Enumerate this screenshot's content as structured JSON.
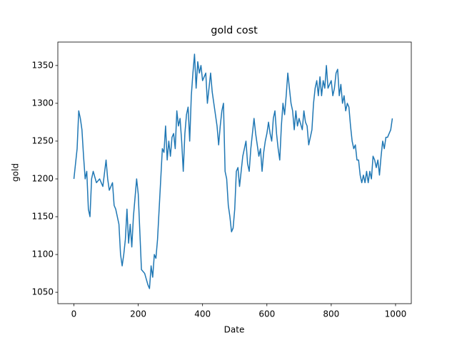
{
  "chart_data": {
    "type": "line",
    "title": "gold cost",
    "x_label": "Date",
    "y_label": "gold",
    "color": "#1f77b4",
    "xlim": [
      -49.95,
      1048.95
    ],
    "ylim": [
      1035,
      1381
    ],
    "xticks": [
      0,
      200,
      400,
      600,
      800,
      1000
    ],
    "yticks": [
      1050,
      1100,
      1150,
      1200,
      1250,
      1300,
      1350
    ],
    "x": [
      0,
      10,
      15,
      20,
      25,
      30,
      35,
      40,
      45,
      50,
      55,
      60,
      70,
      80,
      90,
      100,
      105,
      110,
      120,
      125,
      130,
      140,
      145,
      150,
      155,
      160,
      165,
      170,
      175,
      180,
      185,
      190,
      195,
      200,
      205,
      210,
      220,
      230,
      235,
      240,
      245,
      250,
      255,
      260,
      270,
      275,
      280,
      285,
      290,
      295,
      300,
      305,
      310,
      315,
      320,
      325,
      330,
      335,
      340,
      345,
      350,
      355,
      360,
      365,
      370,
      375,
      380,
      385,
      390,
      395,
      400,
      410,
      415,
      420,
      425,
      430,
      440,
      445,
      450,
      455,
      460,
      465,
      470,
      475,
      480,
      485,
      490,
      495,
      500,
      505,
      510,
      515,
      520,
      525,
      530,
      535,
      540,
      545,
      550,
      555,
      560,
      565,
      570,
      575,
      580,
      585,
      590,
      595,
      600,
      605,
      610,
      615,
      620,
      625,
      630,
      635,
      640,
      645,
      650,
      655,
      660,
      665,
      670,
      675,
      680,
      685,
      690,
      695,
      700,
      710,
      715,
      720,
      725,
      730,
      740,
      745,
      750,
      755,
      760,
      765,
      770,
      775,
      780,
      785,
      790,
      795,
      800,
      805,
      810,
      815,
      820,
      825,
      830,
      835,
      840,
      845,
      850,
      855,
      860,
      865,
      870,
      875,
      880,
      885,
      890,
      895,
      900,
      905,
      910,
      915,
      920,
      925,
      930,
      935,
      940,
      945,
      950,
      955,
      960,
      965,
      970,
      975,
      980,
      985,
      990
    ],
    "values": [
      1200,
      1240,
      1290,
      1280,
      1265,
      1230,
      1200,
      1210,
      1160,
      1150,
      1200,
      1210,
      1195,
      1200,
      1190,
      1225,
      1200,
      1185,
      1195,
      1165,
      1160,
      1140,
      1100,
      1085,
      1100,
      1120,
      1160,
      1115,
      1140,
      1110,
      1150,
      1175,
      1200,
      1180,
      1130,
      1080,
      1075,
      1060,
      1055,
      1085,
      1070,
      1100,
      1095,
      1120,
      1200,
      1240,
      1235,
      1270,
      1225,
      1250,
      1230,
      1255,
      1260,
      1240,
      1290,
      1270,
      1280,
      1250,
      1210,
      1260,
      1285,
      1295,
      1250,
      1310,
      1340,
      1365,
      1320,
      1355,
      1340,
      1350,
      1330,
      1340,
      1300,
      1320,
      1340,
      1315,
      1285,
      1270,
      1245,
      1270,
      1290,
      1300,
      1210,
      1200,
      1165,
      1150,
      1130,
      1135,
      1160,
      1210,
      1215,
      1190,
      1210,
      1230,
      1240,
      1250,
      1220,
      1210,
      1240,
      1260,
      1280,
      1260,
      1245,
      1230,
      1240,
      1210,
      1235,
      1250,
      1260,
      1275,
      1260,
      1250,
      1280,
      1290,
      1260,
      1240,
      1225,
      1270,
      1300,
      1285,
      1310,
      1340,
      1320,
      1300,
      1290,
      1265,
      1290,
      1270,
      1280,
      1265,
      1290,
      1275,
      1270,
      1245,
      1265,
      1300,
      1320,
      1330,
      1310,
      1335,
      1310,
      1330,
      1320,
      1350,
      1320,
      1325,
      1330,
      1310,
      1320,
      1340,
      1345,
      1310,
      1325,
      1300,
      1310,
      1290,
      1300,
      1295,
      1270,
      1250,
      1240,
      1245,
      1225,
      1225,
      1205,
      1195,
      1205,
      1195,
      1210,
      1195,
      1210,
      1200,
      1230,
      1225,
      1215,
      1225,
      1205,
      1230,
      1250,
      1240,
      1255,
      1255,
      1260,
      1265,
      1280
    ]
  }
}
